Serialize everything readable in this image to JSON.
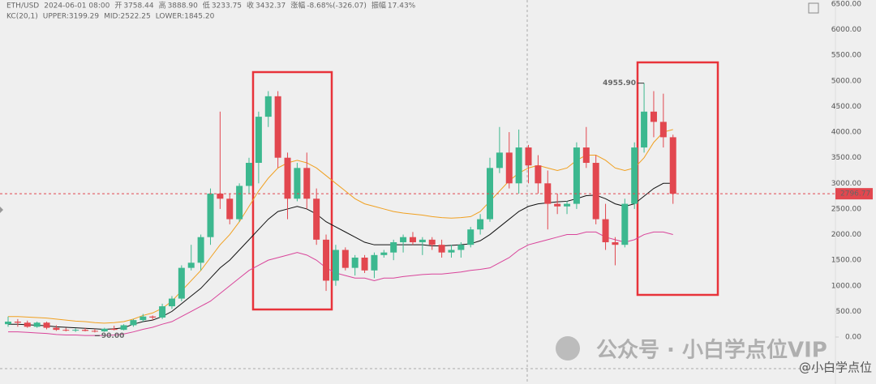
{
  "header": {
    "symbol": "ETH/USD",
    "time": "2024-06-01 08:00",
    "fields": [
      {
        "label": "开",
        "value": "3758.44"
      },
      {
        "label": "高",
        "value": "3888.90"
      },
      {
        "label": "低",
        "value": "3233.75"
      },
      {
        "label": "收",
        "value": "3432.37"
      },
      {
        "label": "涨幅",
        "value": "-8.68%(-326.07)"
      },
      {
        "label": "振幅",
        "value": "17.43%"
      }
    ]
  },
  "chart_data": {
    "type": "candlestick",
    "indicator": "KC(20,1)",
    "ylim": [
      0,
      6500
    ],
    "yticks": [
      {
        "value": 0,
        "label": "0.00"
      },
      {
        "value": 500,
        "label": "500.00"
      },
      {
        "value": 1000,
        "label": "1000.00"
      },
      {
        "value": 1500,
        "label": "1500.00"
      },
      {
        "value": 2000,
        "label": "2000.00"
      },
      {
        "value": 2500,
        "label": "2500.00"
      },
      {
        "value": 3000,
        "label": "3000.00"
      },
      {
        "value": 3500,
        "label": "3500.00"
      },
      {
        "value": 4000,
        "label": "4000.00"
      },
      {
        "value": 4500,
        "label": "4500.00"
      },
      {
        "value": 5000,
        "label": "5000.00"
      },
      {
        "value": 5500,
        "label": "5500.00"
      },
      {
        "value": 6000,
        "label": "6000.00"
      },
      {
        "value": 6500,
        "label": "6500.00"
      }
    ],
    "up_color": "#3cb88f",
    "down_color": "#e2474f",
    "open": [
      250,
      300,
      280,
      200,
      280,
      180,
      140,
      130,
      140,
      120,
      110,
      160,
      140,
      230,
      330,
      400,
      380,
      600,
      750,
      1350,
      1450,
      1950,
      2800,
      2700,
      2300,
      2950,
      3400,
      4300,
      4700,
      3500,
      2700,
      3300,
      2700,
      1900,
      1100,
      1700,
      1350,
      1550,
      1300,
      1600,
      1650,
      1850,
      1950,
      1850,
      1900,
      1800,
      1650,
      1700,
      1800,
      2100,
      2300,
      3300,
      3600,
      3000,
      3700,
      3350,
      3000,
      2600,
      2550,
      2600,
      3700,
      3400,
      2300,
      1850,
      1800,
      2600,
      3700,
      4400,
      4200,
      3900
    ],
    "high": [
      400,
      350,
      320,
      300,
      300,
      230,
      180,
      170,
      180,
      160,
      180,
      220,
      250,
      350,
      450,
      420,
      650,
      800,
      1400,
      1800,
      2000,
      2900,
      4400,
      2800,
      3000,
      3500,
      4400,
      4800,
      4800,
      3600,
      3400,
      3600,
      2900,
      2000,
      1800,
      1750,
      1600,
      1600,
      1650,
      1700,
      1900,
      2000,
      2050,
      1950,
      1950,
      1900,
      1800,
      1850,
      2150,
      2400,
      3500,
      4100,
      4000,
      4050,
      3750,
      3550,
      3250,
      2800,
      2650,
      3800,
      4100,
      3550,
      2600,
      1950,
      2700,
      3800,
      4955.9,
      4800,
      4750,
      3950
    ],
    "low": [
      200,
      200,
      180,
      180,
      150,
      120,
      110,
      100,
      110,
      90,
      100,
      130,
      130,
      200,
      300,
      330,
      350,
      550,
      700,
      1300,
      1300,
      1800,
      2500,
      2200,
      2250,
      2800,
      3000,
      4100,
      3300,
      2300,
      2650,
      2500,
      1800,
      900,
      1000,
      1300,
      1200,
      1250,
      1150,
      1550,
      1500,
      1650,
      1800,
      1600,
      1700,
      1550,
      1550,
      1550,
      1750,
      2000,
      2250,
      3200,
      2900,
      2800,
      3000,
      2800,
      2100,
      2400,
      2400,
      2500,
      3300,
      2200,
      1700,
      1400,
      1750,
      2500,
      3600,
      3900,
      3700,
      2600
    ],
    "close": [
      300,
      280,
      200,
      280,
      180,
      140,
      130,
      140,
      120,
      110,
      160,
      140,
      230,
      330,
      400,
      380,
      600,
      750,
      1350,
      1450,
      1950,
      2800,
      2700,
      2300,
      2950,
      3400,
      4300,
      4700,
      3500,
      2700,
      3300,
      2700,
      1900,
      1100,
      1700,
      1350,
      1550,
      1300,
      1600,
      1650,
      1850,
      1950,
      1850,
      1900,
      1800,
      1650,
      1700,
      1800,
      2100,
      2300,
      3300,
      3600,
      3000,
      3700,
      3350,
      3000,
      2600,
      2550,
      2600,
      3700,
      3400,
      2300,
      1850,
      1800,
      2600,
      3700,
      4400,
      4200,
      3900,
      2796.77
    ],
    "series": [
      {
        "name": "UPPER:3199.29",
        "color": "#f0a020",
        "values": [
          400,
          400,
          390,
          380,
          370,
          350,
          330,
          310,
          300,
          280,
          270,
          280,
          300,
          350,
          420,
          470,
          560,
          700,
          900,
          1100,
          1300,
          1550,
          1800,
          2000,
          2250,
          2550,
          2850,
          3100,
          3300,
          3400,
          3450,
          3400,
          3300,
          3150,
          3000,
          2850,
          2700,
          2600,
          2550,
          2500,
          2450,
          2420,
          2400,
          2380,
          2350,
          2330,
          2320,
          2330,
          2350,
          2450,
          2650,
          2850,
          3050,
          3200,
          3300,
          3350,
          3300,
          3250,
          3300,
          3450,
          3550,
          3550,
          3450,
          3300,
          3250,
          3300,
          3500,
          3800,
          4000,
          4050
        ]
      },
      {
        "name": "MID:2522.25",
        "color": "#111111",
        "values": [
          250,
          250,
          240,
          230,
          220,
          200,
          190,
          180,
          170,
          160,
          150,
          160,
          180,
          250,
          300,
          330,
          400,
          500,
          650,
          800,
          950,
          1150,
          1350,
          1500,
          1700,
          1900,
          2100,
          2300,
          2450,
          2500,
          2550,
          2500,
          2400,
          2250,
          2150,
          2050,
          1950,
          1850,
          1800,
          1800,
          1800,
          1800,
          1800,
          1800,
          1780,
          1780,
          1790,
          1800,
          1820,
          1880,
          2000,
          2150,
          2300,
          2450,
          2550,
          2600,
          2620,
          2640,
          2650,
          2700,
          2760,
          2770,
          2700,
          2600,
          2550,
          2600,
          2750,
          2900,
          3000,
          3000
        ]
      },
      {
        "name": "LOWER:1845.20",
        "color": "#d9449a",
        "values": [
          100,
          100,
          90,
          80,
          70,
          50,
          40,
          40,
          30,
          30,
          30,
          40,
          60,
          100,
          150,
          190,
          250,
          300,
          400,
          500,
          600,
          700,
          850,
          1000,
          1150,
          1300,
          1400,
          1500,
          1550,
          1600,
          1650,
          1600,
          1500,
          1350,
          1250,
          1200,
          1150,
          1150,
          1100,
          1150,
          1150,
          1180,
          1200,
          1220,
          1230,
          1230,
          1250,
          1270,
          1300,
          1320,
          1350,
          1450,
          1550,
          1700,
          1800,
          1850,
          1900,
          1950,
          2000,
          2000,
          2050,
          2050,
          1950,
          1900,
          1850,
          1900,
          2000,
          2050,
          2050,
          2000
        ]
      }
    ],
    "last_price": 2796.77,
    "annotations": [
      {
        "value": 4955.9,
        "label": "4955.90"
      },
      {
        "value": 90,
        "label": "90.00"
      }
    ]
  },
  "watermark": {
    "main": "公众号 · 小白学点位VIP",
    "corner": "@小白学点位"
  }
}
